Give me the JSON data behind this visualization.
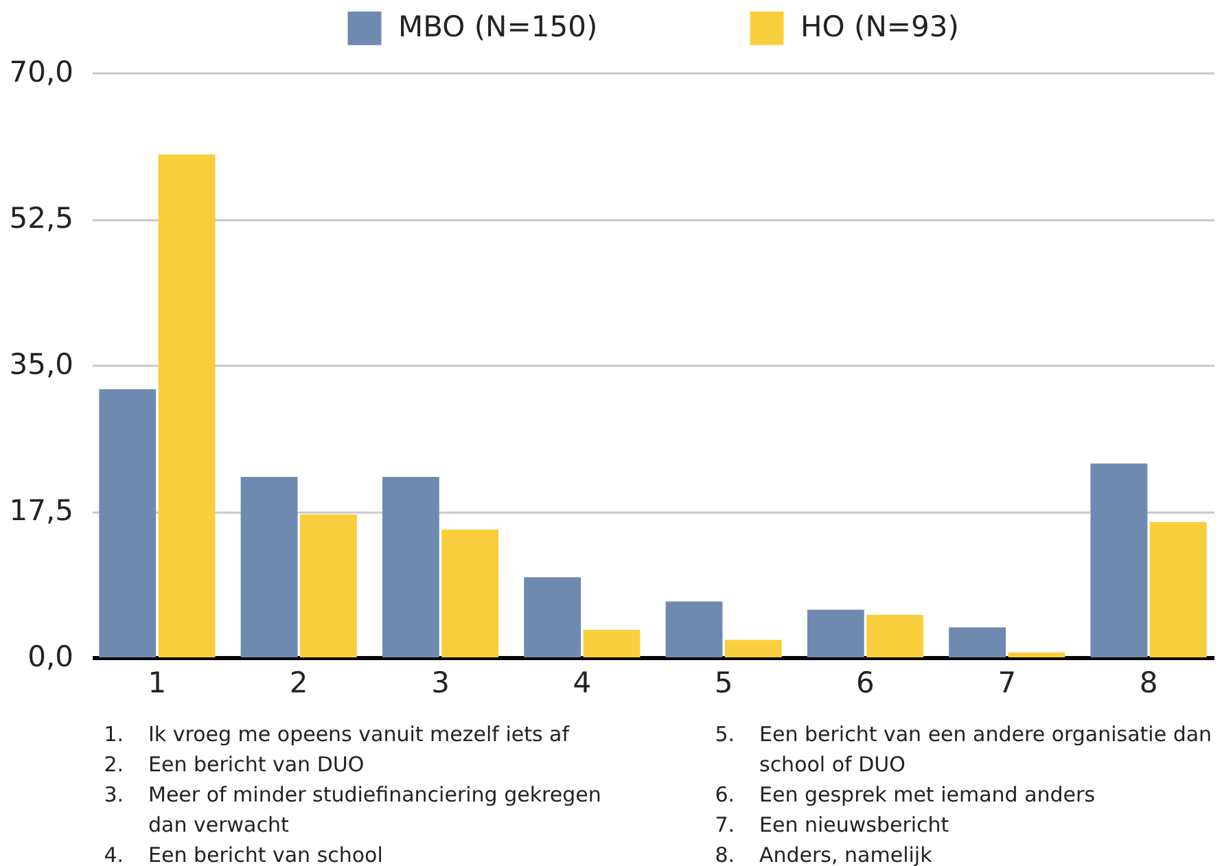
{
  "chart_data": {
    "type": "bar",
    "categories": [
      "1",
      "2",
      "3",
      "4",
      "5",
      "6",
      "7",
      "8"
    ],
    "series": [
      {
        "name": "MBO (N=150)",
        "color": "#6e8ab0",
        "values": [
          32.1,
          21.6,
          21.6,
          9.6,
          6.7,
          5.7,
          3.6,
          23.2
        ]
      },
      {
        "name": "HO (N=93)",
        "color": "#f9ce3d",
        "values": [
          60.2,
          17.1,
          15.3,
          3.3,
          2.1,
          5.1,
          0.6,
          16.2
        ]
      }
    ],
    "ylim": [
      0,
      70
    ],
    "yticks": [
      {
        "value": 0,
        "label": "0,0"
      },
      {
        "value": 17.5,
        "label": "17,5"
      },
      {
        "value": 35,
        "label": "35,0"
      },
      {
        "value": 52.5,
        "label": "52,5"
      },
      {
        "value": 70,
        "label": "70,0"
      }
    ],
    "grid": "y",
    "legend": "top",
    "annotations": [
      "1. Ik vroeg me opeens vanuit mezelf iets af",
      "2. Een bericht van DUO",
      "3. Meer of minder studiefinanciering gekregen dan verwacht",
      "4. Een bericht van school",
      "5. Een bericht van een andere organisatie dan school of DUO",
      "6. Een gesprek met iemand anders",
      "7. Een nieuwsbericht",
      "8. Anders, namelijk"
    ]
  }
}
